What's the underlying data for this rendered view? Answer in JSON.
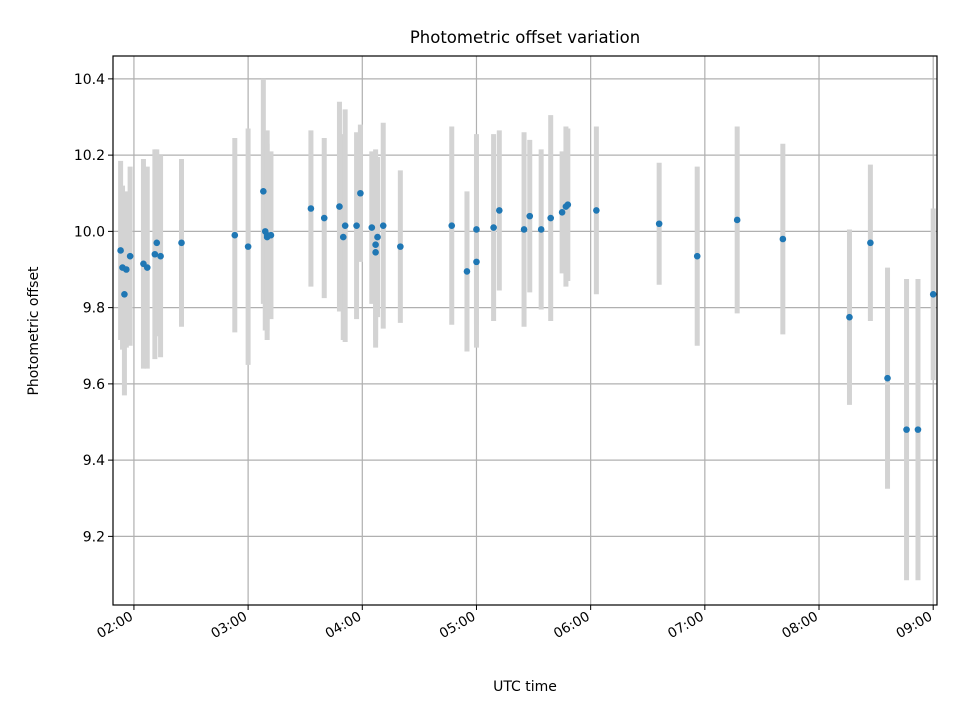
{
  "chart_data": {
    "type": "scatter",
    "title": "Photometric offset variation",
    "xlabel": "UTC time",
    "ylabel": "Photometric offset",
    "grid": true,
    "legend": "none",
    "x_axis": "time",
    "xlim": [
      "01:49",
      "09:02"
    ],
    "ylim": [
      9.02,
      10.46
    ],
    "x_ticks": [
      "02:00",
      "03:00",
      "04:00",
      "05:00",
      "06:00",
      "07:00",
      "08:00",
      "09:00"
    ],
    "y_ticks": [
      "9.2",
      "9.4",
      "9.6",
      "9.8",
      "10.0",
      "10.2",
      "10.4"
    ],
    "colors": {
      "point": "#1f77b4",
      "errorbar": "#d3d3d3",
      "grid": "#b0b0b0"
    },
    "series": [
      {
        "x": [
          "01:53",
          "01:54",
          "01:55",
          "01:56",
          "01:58",
          "02:05",
          "02:07",
          "02:11",
          "02:12",
          "02:14",
          "02:25",
          "02:53",
          "03:00",
          "03:08",
          "03:09",
          "03:10",
          "03:10",
          "03:12",
          "03:33",
          "03:40",
          "03:48",
          "03:50",
          "03:51",
          "03:57",
          "03:59",
          "04:05",
          "04:07",
          "04:07",
          "04:08",
          "04:11",
          "04:20",
          "04:47",
          "04:55",
          "05:00",
          "05:00",
          "05:09",
          "05:12",
          "05:25",
          "05:28",
          "05:34",
          "05:39",
          "05:45",
          "05:47",
          "05:48",
          "06:03",
          "06:36",
          "06:56",
          "07:17",
          "07:41",
          "08:16",
          "08:27",
          "08:36",
          "08:46",
          "08:52",
          "09:00"
        ],
        "y": [
          9.95,
          9.905,
          9.835,
          9.9,
          9.935,
          9.915,
          9.905,
          9.94,
          9.97,
          9.935,
          9.97,
          9.99,
          9.96,
          10.105,
          10.0,
          9.985,
          9.99,
          9.99,
          10.06,
          10.035,
          10.065,
          9.985,
          10.015,
          10.015,
          10.1,
          10.01,
          9.965,
          9.945,
          9.985,
          10.015,
          9.96,
          10.015,
          9.895,
          9.92,
          10.005,
          10.01,
          10.055,
          10.005,
          10.04,
          10.005,
          10.035,
          10.05,
          10.065,
          10.07,
          10.055,
          10.02,
          9.935,
          10.03,
          9.98,
          9.775,
          9.97,
          9.615,
          9.48,
          9.48,
          9.835
        ],
        "yerr": [
          0.235,
          0.215,
          0.265,
          0.205,
          0.235,
          0.275,
          0.265,
          0.275,
          0.245,
          0.265,
          0.22,
          0.255,
          0.31,
          0.295,
          0.26,
          0.245,
          0.275,
          0.22,
          0.205,
          0.21,
          0.275,
          0.27,
          0.305,
          0.245,
          0.18,
          0.2,
          0.25,
          0.25,
          0.21,
          0.27,
          0.2,
          0.26,
          0.21,
          0.225,
          0.25,
          0.245,
          0.21,
          0.255,
          0.2,
          0.21,
          0.27,
          0.16,
          0.21,
          0.2,
          0.22,
          0.16,
          0.235,
          0.245,
          0.25,
          0.23,
          0.205,
          0.29,
          0.395,
          0.395,
          0.225
        ]
      }
    ]
  }
}
